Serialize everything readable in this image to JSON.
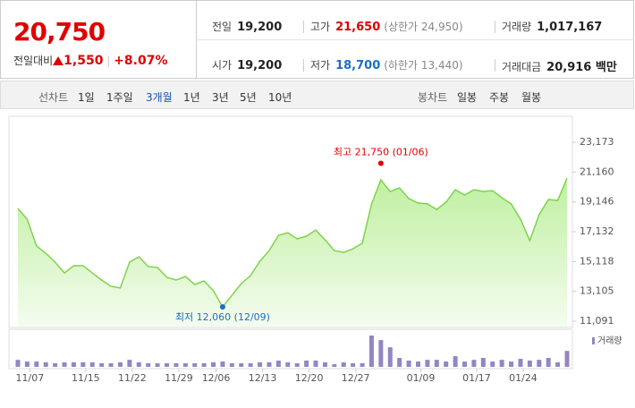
{
  "header": {
    "price": "20,750",
    "change_label": "전일대비",
    "change": "1,550",
    "change_rate": "+8.07%",
    "stats": [
      [
        {
          "label": "전일",
          "value": "19,200"
        },
        {
          "label": "고가",
          "value": "21,650",
          "note": "(상한가 24,950)"
        },
        {
          "label": "거래량",
          "value": "1,017,167"
        }
      ],
      [
        {
          "label": "시가",
          "value": "19,200"
        },
        {
          "label": "저가",
          "value": "18,700",
          "note": "(하한가 13,440)"
        },
        {
          "label": "거래대금",
          "value": "20,916 백만"
        }
      ]
    ]
  },
  "tabs": {
    "line_label": "선차트",
    "line": [
      "1일",
      "1주일",
      "3개월",
      "1년",
      "3년",
      "5년",
      "10년"
    ],
    "selected": "3개월",
    "candle_label": "봉차트",
    "candle": [
      "일봉",
      "주봉",
      "월봉"
    ]
  },
  "chart_data": {
    "type": "line",
    "color": "#7ed34a",
    "categories": [
      null,
      "11/07",
      null,
      null,
      null,
      null,
      null,
      "11/15",
      null,
      null,
      null,
      null,
      "11/22",
      null,
      null,
      null,
      null,
      "11/29",
      null,
      null,
      null,
      "12/06",
      null,
      null,
      null,
      null,
      "12/13",
      null,
      null,
      null,
      null,
      "12/20",
      null,
      null,
      null,
      null,
      "12/27",
      null,
      null,
      null,
      null,
      null,
      null,
      "01/09",
      null,
      null,
      null,
      null,
      null,
      "01/17",
      null,
      null,
      null,
      null,
      "01/24",
      null,
      null,
      null,
      null,
      null
    ],
    "values": [
      18700,
      17980,
      16170,
      15680,
      15080,
      14350,
      14840,
      14840,
      14350,
      13870,
      13450,
      13330,
      15080,
      15440,
      14780,
      14720,
      14050,
      13870,
      14110,
      13570,
      13810,
      13150,
      12060,
      12840,
      13630,
      14170,
      15140,
      15860,
      16890,
      17070,
      16650,
      16830,
      17250,
      16590,
      15860,
      15740,
      15980,
      16350,
      19010,
      20640,
      19850,
      20090,
      19370,
      19070,
      19010,
      18640,
      19130,
      19970,
      19610,
      19970,
      19850,
      19910,
      19430,
      19010,
      17980,
      16530,
      18280,
      19310,
      19250,
      20750
    ],
    "ylim": [
      11091,
      23173
    ],
    "yticks": [
      {
        "value": 11091,
        "label": "11,091"
      },
      {
        "value": 13105,
        "label": "13,105"
      },
      {
        "value": 15118,
        "label": "15,118"
      },
      {
        "value": 17132,
        "label": "17,132"
      },
      {
        "value": 19146,
        "label": "19,146"
      },
      {
        "value": 21160,
        "label": "21,160"
      },
      {
        "value": 23173,
        "label": "23,173"
      }
    ],
    "high": {
      "value": 21750,
      "label": "최고 21,750 (01/06)",
      "color": "#e00000"
    },
    "low": {
      "value": 12060,
      "label": "최저 12,060 (12/09)",
      "color": "#1a6fc4"
    },
    "volume": {
      "name": "거래량",
      "color": "#9486c2",
      "vlim": [
        0,
        2400000
      ],
      "values": [
        450000,
        340000,
        340000,
        290000,
        230000,
        290000,
        290000,
        290000,
        290000,
        230000,
        230000,
        290000,
        450000,
        290000,
        230000,
        230000,
        230000,
        230000,
        230000,
        230000,
        230000,
        290000,
        340000,
        230000,
        230000,
        230000,
        290000,
        290000,
        400000,
        290000,
        230000,
        400000,
        400000,
        290000,
        170000,
        290000,
        230000,
        230000,
        2000000,
        1710000,
        1250000,
        570000,
        400000,
        340000,
        450000,
        450000,
        340000,
        680000,
        340000,
        450000,
        570000,
        340000,
        450000,
        340000,
        510000,
        400000,
        450000,
        570000,
        290000,
        1017167
      ]
    }
  }
}
